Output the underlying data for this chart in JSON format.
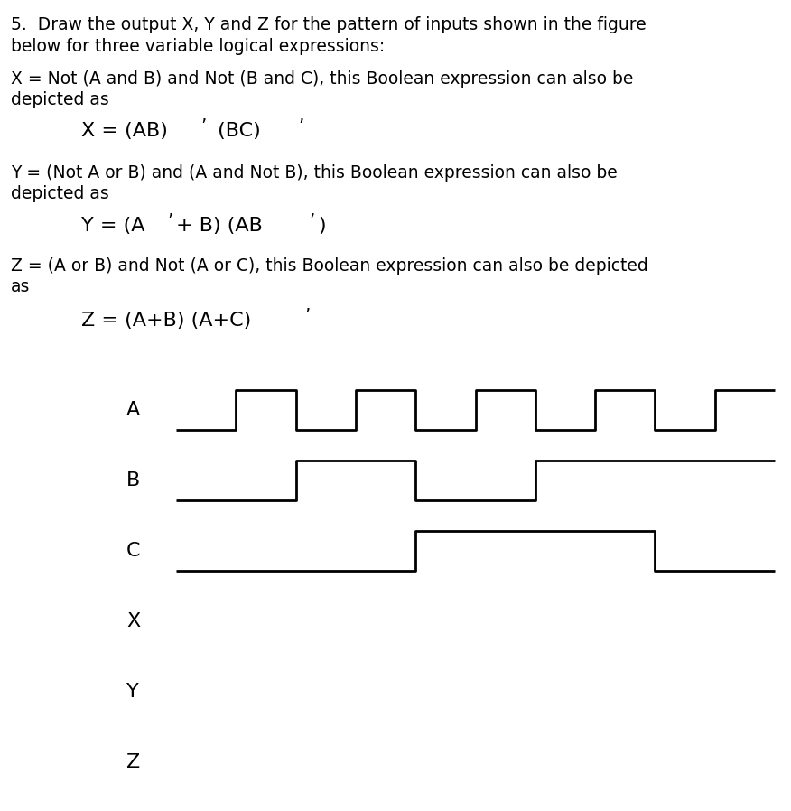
{
  "title_text": "5.  Draw the output X, Y and Z for the pattern of inputs shown in the figure\nbelow for three variable logical expressions:",
  "line1": "X = Not (A and B) and Not (B and C), this Boolean expression can also be\ndepicted as",
  "expr1_left": "X = (AB)",
  "expr1_right": " (BC)",
  "line2": "Y = (Not A or B) and (A and Not B), this Boolean expression can also be\ndepicted as",
  "expr2_left": "Y = (A",
  "expr2_mid": "+ B) (AB",
  "line3": "Z = (A or B) and Not (A or C), this Boolean expression can also be depicted\nas",
  "expr3_left": "Z = (A+B) (A+C)",
  "signals": {
    "A": [
      0,
      1,
      0,
      1,
      0,
      1,
      0,
      1,
      0,
      1
    ],
    "B": [
      0,
      0,
      1,
      1,
      0,
      0,
      1,
      1,
      1,
      1
    ],
    "C": [
      0,
      0,
      0,
      0,
      1,
      1,
      1,
      1,
      0,
      0
    ]
  },
  "t_steps": 10,
  "signal_labels": [
    "A",
    "B",
    "C",
    "X",
    "Y",
    "Z"
  ],
  "bg_color": "#ffffff",
  "line_color": "#000000",
  "font_size_body": 13.5,
  "font_size_expr": 16,
  "font_size_label": 16,
  "font_size_title": 13.5
}
